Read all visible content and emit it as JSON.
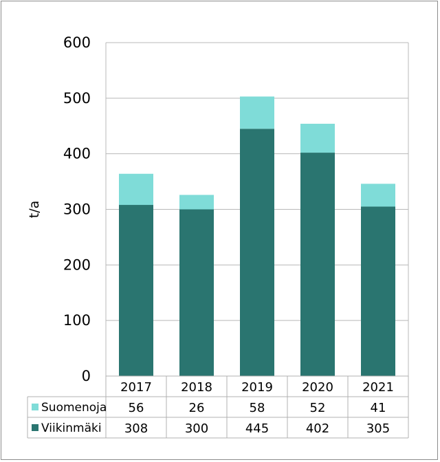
{
  "chart_data": {
    "type": "bar",
    "stacked": true,
    "categories": [
      "2017",
      "2018",
      "2019",
      "2020",
      "2021"
    ],
    "series": [
      {
        "name": "Viikinmäki",
        "values": [
          308,
          300,
          445,
          402,
          305
        ],
        "color": "#2a7570"
      },
      {
        "name": "Suomenoja",
        "values": [
          56,
          26,
          58,
          52,
          41
        ],
        "color": "#7fdcd8"
      }
    ],
    "ylabel": "t/a",
    "ylim": [
      0,
      600
    ],
    "yticks": [
      "0",
      "100",
      "200",
      "300",
      "400",
      "500",
      "600"
    ],
    "grid": true,
    "data_table": true
  }
}
